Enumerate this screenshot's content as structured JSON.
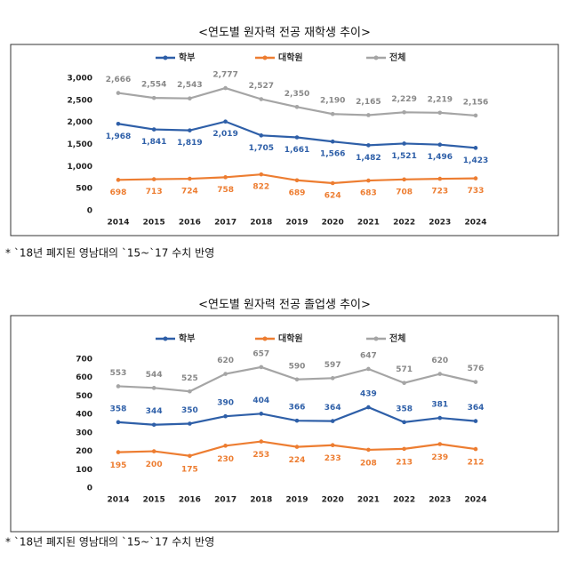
{
  "chart_data": [
    {
      "type": "line",
      "title": "<연도별 원자력 전공 재학생 추이>",
      "note": "* `18년 폐지된 영남대의 `15~`17 수치 반영",
      "categories": [
        "2014",
        "2015",
        "2016",
        "2017",
        "2018",
        "2019",
        "2020",
        "2021",
        "2022",
        "2023",
        "2024"
      ],
      "ylim": [
        0,
        3000
      ],
      "yticks": [
        0,
        500,
        {
          "value": 1000,
          "label": "1,000"
        },
        {
          "value": 1500,
          "label": "1,500"
        },
        {
          "value": 2000,
          "label": "2,000"
        },
        {
          "value": 2500,
          "label": "2,500"
        },
        {
          "value": 3000,
          "label": "3,000"
        }
      ],
      "grid": false,
      "series": [
        {
          "name": "학부",
          "color": "#2e5fa8",
          "values": [
            1968,
            1841,
            1819,
            2019,
            1705,
            1661,
            1566,
            1482,
            1521,
            1496,
            1423
          ],
          "value_labels": [
            "1,968",
            "1,841",
            "1,819",
            "2,019",
            "1,705",
            "1,661",
            "1,566",
            "1,482",
            "1,521",
            "1,496",
            "1,423"
          ]
        },
        {
          "name": "대학원",
          "color": "#ed7d31",
          "values": [
            698,
            713,
            724,
            758,
            822,
            689,
            624,
            683,
            708,
            723,
            733
          ]
        },
        {
          "name": "전체",
          "color": "#a5a5a5",
          "values": [
            2666,
            2554,
            2543,
            2777,
            2527,
            2350,
            2190,
            2165,
            2229,
            2219,
            2156
          ],
          "value_labels": [
            "2,666",
            "2,554",
            "2,543",
            "2,777",
            "2,527",
            "2,350",
            "2,190",
            "2,165",
            "2,229",
            "2,219",
            "2,156"
          ]
        }
      ]
    },
    {
      "type": "line",
      "title": "<연도별 원자력 전공 졸업생 추이>",
      "note": "* `18년 폐지된 영남대의 `15~`17 수치 반영",
      "categories": [
        "2014",
        "2015",
        "2016",
        "2017",
        "2018",
        "2019",
        "2020",
        "2021",
        "2022",
        "2023",
        "2024"
      ],
      "ylim": [
        0,
        700
      ],
      "yticks": [
        0,
        100,
        200,
        300,
        400,
        500,
        600,
        700
      ],
      "grid": false,
      "series": [
        {
          "name": "학부",
          "color": "#2e5fa8",
          "values": [
            358,
            344,
            350,
            390,
            404,
            366,
            364,
            439,
            358,
            381,
            364
          ]
        },
        {
          "name": "대학원",
          "color": "#ed7d31",
          "values": [
            195,
            200,
            175,
            230,
            253,
            224,
            233,
            208,
            213,
            239,
            212
          ]
        },
        {
          "name": "전체",
          "color": "#a5a5a5",
          "values": [
            553,
            544,
            525,
            620,
            657,
            590,
            597,
            647,
            571,
            620,
            576
          ]
        }
      ]
    }
  ]
}
